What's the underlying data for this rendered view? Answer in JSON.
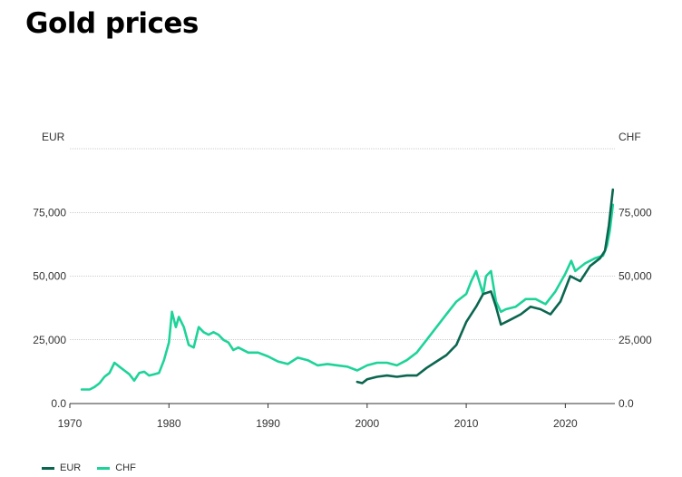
{
  "title": "Gold prices",
  "chart_data": {
    "type": "line",
    "title": "Gold prices",
    "left_axis_label": "EUR",
    "right_axis_label": "CHF",
    "xlim": [
      1970,
      2025
    ],
    "ylim": [
      0,
      100000
    ],
    "x_ticks": [
      1970,
      1980,
      1990,
      2000,
      2010,
      2020
    ],
    "x_tick_labels": [
      "1970",
      "1980",
      "1990",
      "2000",
      "2010",
      "2020"
    ],
    "y_ticks": [
      0,
      25000,
      50000,
      75000
    ],
    "y_tick_labels_left": [
      "0.0",
      "25,000",
      "50,000",
      "75,000"
    ],
    "y_tick_labels_right": [
      "0.0",
      "25,000",
      "50,000",
      "75,000"
    ],
    "grid": true,
    "legend_position": "bottom-left",
    "series": [
      {
        "name": "EUR",
        "color": "#0b6650",
        "x": [
          1999.0,
          1999.5,
          2000.0,
          2000.5,
          2001.0,
          2002.0,
          2003.0,
          2004.0,
          2005.0,
          2006.0,
          2007.0,
          2008.0,
          2009.0,
          2010.0,
          2011.0,
          2011.7,
          2012.5,
          2013.0,
          2013.5,
          2014.5,
          2015.5,
          2016.5,
          2017.5,
          2018.5,
          2019.5,
          2020.5,
          2021.5,
          2022.5,
          2023.5,
          2024.0,
          2024.4,
          2024.8
        ],
        "y": [
          8500,
          8000,
          9500,
          10000,
          10500,
          11000,
          10500,
          11000,
          11000,
          14000,
          16500,
          19000,
          23000,
          32000,
          38000,
          43000,
          44000,
          38000,
          31000,
          33000,
          35000,
          38000,
          37000,
          35000,
          40000,
          50000,
          48000,
          54000,
          57000,
          60000,
          70000,
          84000
        ]
      },
      {
        "name": "CHF",
        "color": "#1ed399",
        "x": [
          1971.2,
          1972.0,
          1972.5,
          1973.0,
          1973.5,
          1974.0,
          1974.5,
          1975.0,
          1975.5,
          1976.0,
          1976.5,
          1977.0,
          1977.5,
          1978.0,
          1978.5,
          1979.0,
          1979.5,
          1980.0,
          1980.3,
          1980.7,
          1981.0,
          1981.5,
          1982.0,
          1982.5,
          1983.0,
          1983.5,
          1984.0,
          1984.5,
          1985.0,
          1985.5,
          1986.0,
          1986.5,
          1987.0,
          1988.0,
          1989.0,
          1990.0,
          1991.0,
          1992.0,
          1993.0,
          1994.0,
          1995.0,
          1996.0,
          1997.0,
          1998.0,
          1999.0,
          2000.0,
          2001.0,
          2002.0,
          2003.0,
          2004.0,
          2005.0,
          2006.0,
          2007.0,
          2008.0,
          2009.0,
          2010.0,
          2010.5,
          2011.0,
          2011.7,
          2012.0,
          2012.5,
          2013.0,
          2013.5,
          2014.0,
          2015.0,
          2016.0,
          2017.0,
          2018.0,
          2019.0,
          2020.0,
          2020.6,
          2021.0,
          2022.0,
          2023.0,
          2023.8,
          2024.2,
          2024.5,
          2024.8
        ],
        "y": [
          5500,
          5500,
          6500,
          8000,
          10500,
          12000,
          16000,
          14500,
          13000,
          11500,
          9000,
          12000,
          12500,
          11000,
          11500,
          12000,
          17000,
          24000,
          36000,
          30000,
          34000,
          30000,
          23000,
          22000,
          30000,
          28000,
          27000,
          28000,
          27000,
          25000,
          24000,
          21000,
          22000,
          20000,
          20000,
          18500,
          16500,
          15500,
          18000,
          17000,
          15000,
          15500,
          15000,
          14500,
          13000,
          15000,
          16000,
          16000,
          15000,
          17000,
          20000,
          25000,
          30000,
          35000,
          40000,
          43000,
          48000,
          52000,
          43000,
          50000,
          52000,
          40000,
          36000,
          37000,
          38000,
          41000,
          41000,
          39000,
          44000,
          51000,
          56000,
          52000,
          55000,
          57000,
          58000,
          62000,
          68000,
          78000
        ]
      }
    ]
  }
}
